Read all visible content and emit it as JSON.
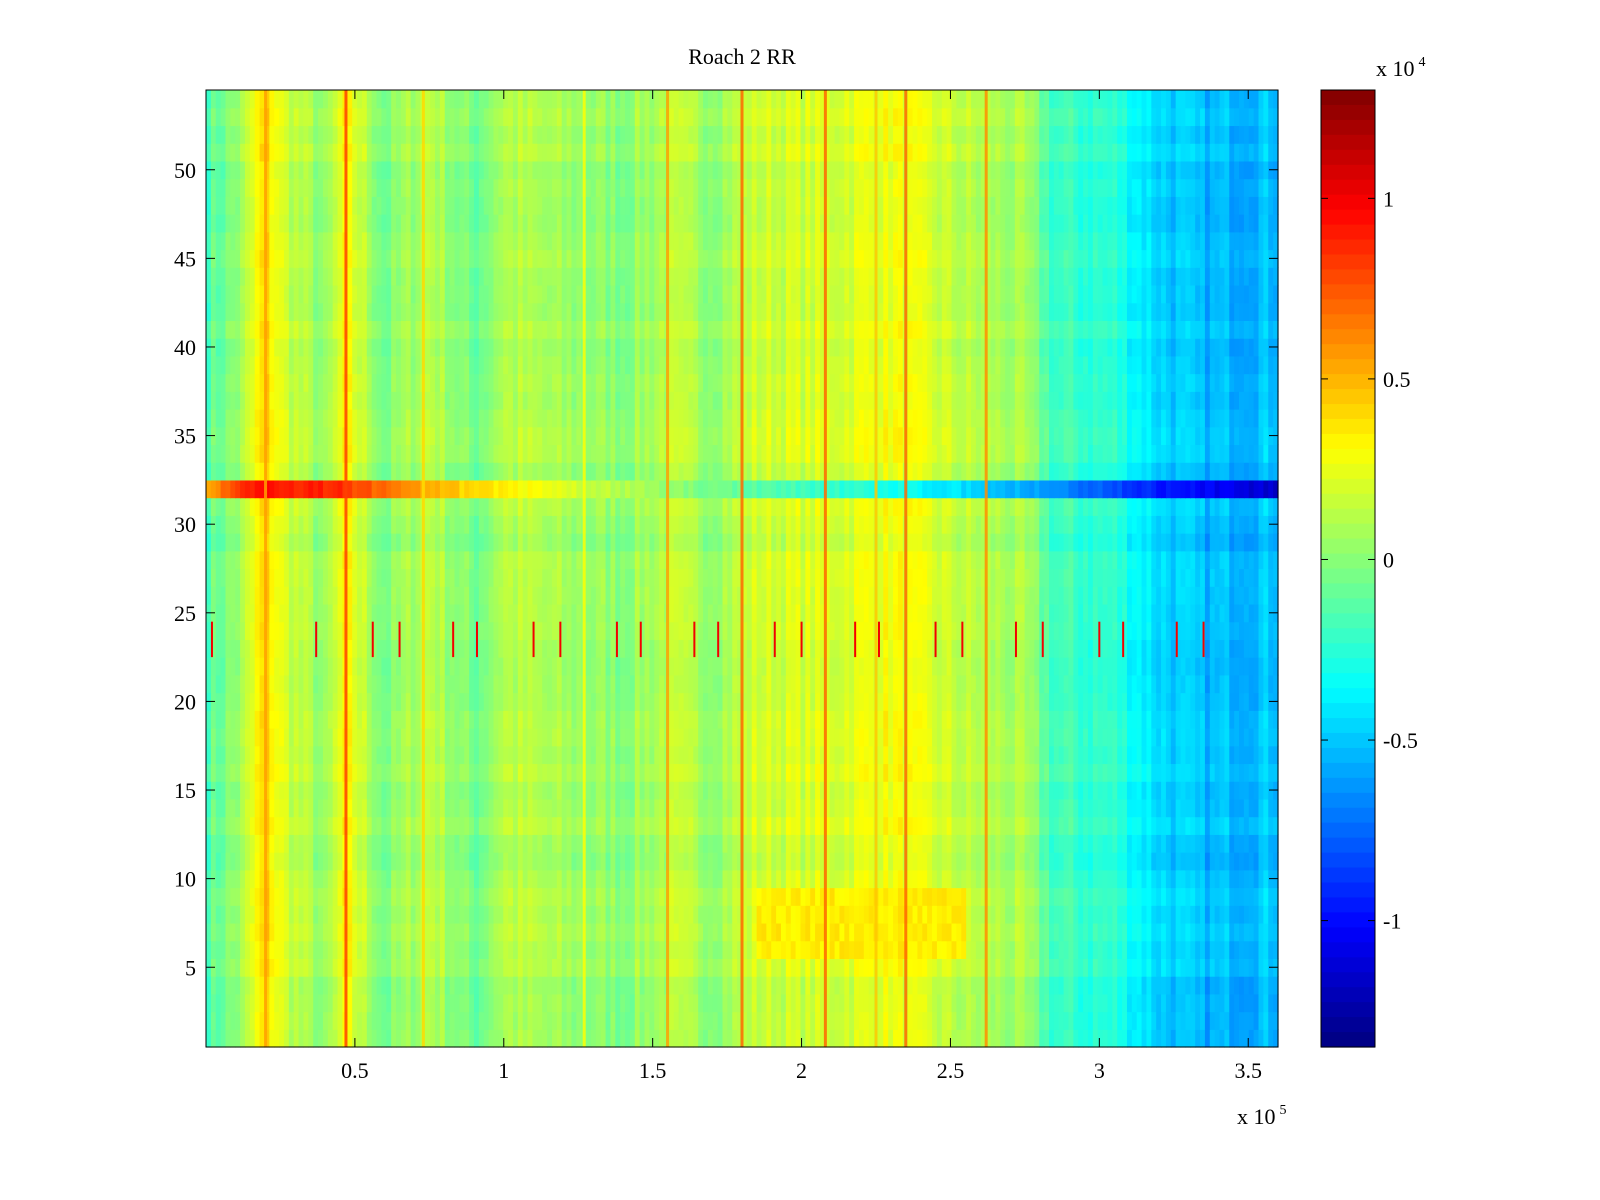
{
  "chart_data": {
    "type": "heatmap",
    "title": "Roach 2 RR",
    "xlabel": "",
    "ylabel": "",
    "xlim": [
      0,
      3.6
    ],
    "ylim": [
      0.5,
      54.5
    ],
    "x_multiplier_label": {
      "base": "x 10",
      "power": "5"
    },
    "x_ticks": [
      {
        "value": 0.5,
        "label": "0.5"
      },
      {
        "value": 1,
        "label": "1"
      },
      {
        "value": 1.5,
        "label": "1.5"
      },
      {
        "value": 2,
        "label": "2"
      },
      {
        "value": 2.5,
        "label": "2.5"
      },
      {
        "value": 3,
        "label": "3"
      },
      {
        "value": 3.5,
        "label": "3.5"
      }
    ],
    "y_ticks": [
      {
        "value": 5,
        "label": "5"
      },
      {
        "value": 10,
        "label": "10"
      },
      {
        "value": 15,
        "label": "15"
      },
      {
        "value": 20,
        "label": "20"
      },
      {
        "value": 25,
        "label": "25"
      },
      {
        "value": 30,
        "label": "30"
      },
      {
        "value": 35,
        "label": "35"
      },
      {
        "value": 40,
        "label": "40"
      },
      {
        "value": 45,
        "label": "45"
      },
      {
        "value": 50,
        "label": "50"
      }
    ],
    "colorbar": {
      "colormap": "jet",
      "range": [
        -1.35,
        1.3
      ],
      "multiplier_label": {
        "base": "x 10",
        "power": "4"
      },
      "ticks": [
        {
          "value": -1,
          "label": "-1"
        },
        {
          "value": -0.5,
          "label": "-0.5"
        },
        {
          "value": 0,
          "label": "0"
        },
        {
          "value": 0.5,
          "label": "0.5"
        },
        {
          "value": 1,
          "label": "1"
        }
      ]
    },
    "rows": 54,
    "x_profile": [
      {
        "x": 0.0,
        "value": -0.15
      },
      {
        "x": 0.12,
        "value": 0.05
      },
      {
        "x": 0.2,
        "value": 0.42
      },
      {
        "x": 0.26,
        "value": 0.2
      },
      {
        "x": 0.4,
        "value": 0.0
      },
      {
        "x": 0.47,
        "value": 0.3
      },
      {
        "x": 0.6,
        "value": -0.05
      },
      {
        "x": 0.75,
        "value": 0.15
      },
      {
        "x": 0.9,
        "value": -0.08
      },
      {
        "x": 1.0,
        "value": 0.12
      },
      {
        "x": 1.2,
        "value": 0.05
      },
      {
        "x": 1.4,
        "value": 0.0
      },
      {
        "x": 1.55,
        "value": 0.12
      },
      {
        "x": 1.7,
        "value": 0.05
      },
      {
        "x": 1.85,
        "value": 0.18
      },
      {
        "x": 2.1,
        "value": 0.2
      },
      {
        "x": 2.3,
        "value": 0.28
      },
      {
        "x": 2.55,
        "value": 0.12
      },
      {
        "x": 2.75,
        "value": 0.05
      },
      {
        "x": 2.85,
        "value": -0.2
      },
      {
        "x": 3.05,
        "value": -0.25
      },
      {
        "x": 3.2,
        "value": -0.45
      },
      {
        "x": 3.35,
        "value": -0.55
      },
      {
        "x": 3.6,
        "value": -0.5
      }
    ],
    "hot_columns": [
      {
        "x": 0.2,
        "value": 0.55
      },
      {
        "x": 0.47,
        "value": 0.8
      },
      {
        "x": 0.73,
        "value": 0.4
      },
      {
        "x": 1.27,
        "value": 0.3
      },
      {
        "x": 1.55,
        "value": 0.55
      },
      {
        "x": 1.8,
        "value": 0.7
      },
      {
        "x": 2.08,
        "value": 0.7
      },
      {
        "x": 2.35,
        "value": 0.7
      },
      {
        "x": 2.62,
        "value": 0.6
      },
      {
        "x": 2.25,
        "value": 0.45
      }
    ],
    "anomaly_row": {
      "y": 32,
      "profile": [
        {
          "x": 0.0,
          "value": 0.55
        },
        {
          "x": 0.18,
          "value": 0.95
        },
        {
          "x": 0.45,
          "value": 0.85
        },
        {
          "x": 0.75,
          "value": 0.5
        },
        {
          "x": 1.05,
          "value": 0.3
        },
        {
          "x": 1.4,
          "value": 0.1
        },
        {
          "x": 1.8,
          "value": -0.1
        },
        {
          "x": 2.3,
          "value": -0.3
        },
        {
          "x": 2.8,
          "value": -0.6
        },
        {
          "x": 3.2,
          "value": -0.95
        },
        {
          "x": 3.6,
          "value": -1.15
        }
      ]
    },
    "spike_row": {
      "y": 23,
      "x_positions": [
        0.02,
        0.37,
        0.56,
        0.65,
        0.83,
        0.91,
        1.1,
        1.19,
        1.38,
        1.46,
        1.64,
        1.72,
        1.91,
        2.0,
        2.18,
        2.26,
        2.45,
        2.54,
        2.72,
        2.81,
        3.0,
        3.08,
        3.26,
        3.35
      ],
      "value": 1.0
    },
    "warm_region": {
      "x": [
        1.85,
        2.55
      ],
      "y": [
        5.5,
        9.5
      ],
      "value": 0.35
    },
    "cool_region": {
      "x": [
        3.25,
        3.6
      ],
      "y": [
        12.5,
        19.5
      ],
      "value": -0.35
    }
  }
}
